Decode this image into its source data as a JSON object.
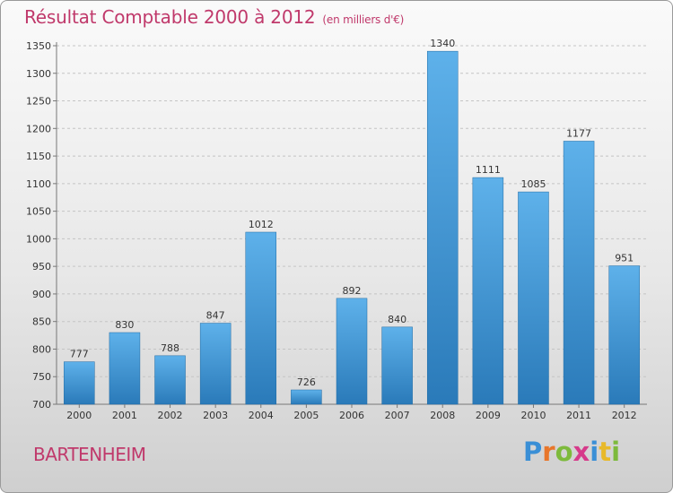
{
  "chart_data": {
    "type": "bar",
    "title": "Résultat Comptable 2000 à 2012",
    "subtitle": "(en milliers d'€)",
    "categories": [
      "2000",
      "2001",
      "2002",
      "2003",
      "2004",
      "2005",
      "2006",
      "2007",
      "2008",
      "2009",
      "2010",
      "2011",
      "2012"
    ],
    "values": [
      777,
      830,
      788,
      847,
      1012,
      726,
      892,
      840,
      1340,
      1111,
      1085,
      1177,
      951
    ],
    "ylim": [
      700,
      1350
    ],
    "yticks": [
      700,
      750,
      800,
      850,
      900,
      950,
      1000,
      1050,
      1100,
      1150,
      1200,
      1250,
      1300,
      1350
    ],
    "grid": true,
    "colors": {
      "bar_top": "#5eb1ea",
      "bar_bottom": "#2a7ab9",
      "title": "#c0396b"
    }
  },
  "footer": {
    "city": "BARTENHEIM"
  },
  "logo": {
    "letters": [
      {
        "ch": "P",
        "color": "#3a8fd6"
      },
      {
        "ch": "r",
        "color": "#e8762a"
      },
      {
        "ch": "o",
        "color": "#7dba3c"
      },
      {
        "ch": "x",
        "color": "#d63a8a"
      },
      {
        "ch": "i",
        "color": "#3a8fd6"
      },
      {
        "ch": "t",
        "color": "#e8b92a"
      },
      {
        "ch": "i",
        "color": "#7dba3c"
      }
    ]
  }
}
